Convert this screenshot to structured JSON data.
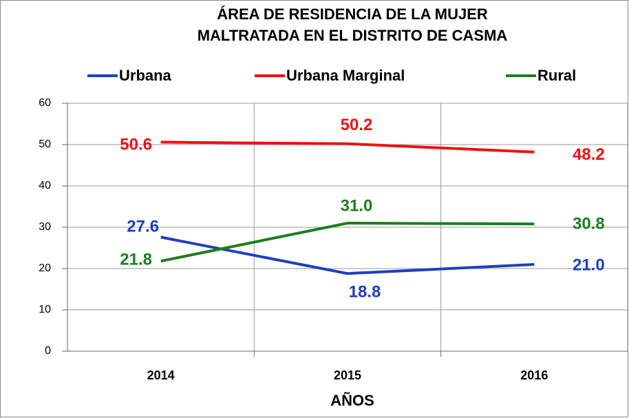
{
  "chart_data": {
    "type": "line",
    "title": [
      "ÁREA DE RESIDENCIA DE LA MUJER",
      "MALTRATADA EN EL DISTRITO DE CASMA"
    ],
    "x_label": "AÑOS",
    "categories": [
      "2014",
      "2015",
      "2016"
    ],
    "series": [
      {
        "name": "Urbana",
        "color": "#1f3fbf",
        "values": [
          27.6,
          18.8,
          21.0
        ],
        "value_labels": [
          "27.6",
          "18.8",
          "21.0"
        ]
      },
      {
        "name": "Urbana Marginal",
        "color": "#ee1111",
        "values": [
          50.6,
          50.2,
          48.2
        ],
        "value_labels": [
          "50.6",
          "50.2",
          "48.2"
        ]
      },
      {
        "name": "Rural",
        "color": "#1e7d1e",
        "values": [
          21.8,
          31.0,
          30.8
        ],
        "value_labels": [
          "21.8",
          "31.0",
          "30.8"
        ]
      }
    ],
    "ylim": [
      0,
      60
    ],
    "yticks": [
      0,
      10,
      20,
      30,
      40,
      50,
      60
    ],
    "grid": true,
    "legend": "top"
  }
}
